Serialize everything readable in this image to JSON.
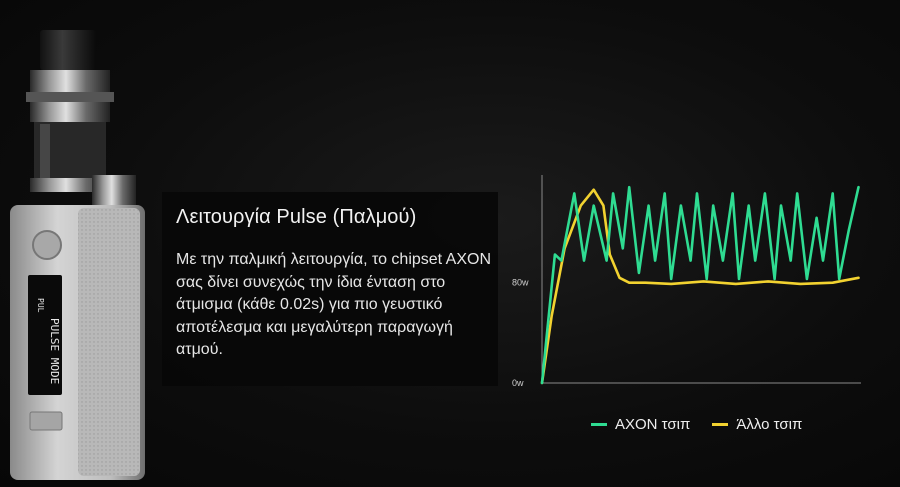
{
  "device": {
    "screen_text": "PULSE MODE",
    "screen_subtext": "PUL"
  },
  "feature": {
    "title": "Λειτουργία Pulse (Παλμού)",
    "description": "Με την παλμική λειτουργία, το chipset AXON σας δίνει συνεχώς την ίδια ένταση στο άτμισμα (κάθε 0.02s) για πιο γευστικό αποτέλεσμα και μεγαλύτερη παραγωγή ατμού."
  },
  "colors": {
    "axon": "#2fdc92",
    "other": "#f2d230",
    "axis": "#8a8a8a",
    "panel": "#080808"
  },
  "chart_data": {
    "type": "line",
    "title": "",
    "xlabel": "",
    "ylabel": "",
    "y_ticks": [
      "80w",
      "0w"
    ],
    "ylim": [
      0,
      1.7
    ],
    "xlim": [
      0,
      100
    ],
    "grid": false,
    "legend": "bottom",
    "series": [
      {
        "name": "AXON τσιπ",
        "color": "#2fdc92",
        "x": [
          0,
          4,
          6,
          10,
          13,
          16,
          20,
          22,
          25,
          27,
          30,
          33,
          35,
          38,
          40,
          43,
          46,
          48,
          51,
          53,
          56,
          59,
          61,
          64,
          66,
          69,
          72,
          74,
          77,
          79,
          82,
          85,
          87,
          90,
          92,
          95,
          98
        ],
        "y": [
          0,
          1.05,
          1.0,
          1.55,
          1.0,
          1.45,
          1.0,
          1.55,
          1.1,
          1.6,
          0.9,
          1.45,
          1.0,
          1.55,
          0.85,
          1.45,
          1.0,
          1.55,
          0.85,
          1.45,
          1.0,
          1.55,
          0.85,
          1.45,
          1.0,
          1.55,
          0.85,
          1.45,
          1.0,
          1.55,
          0.85,
          1.35,
          1.0,
          1.55,
          0.85,
          1.25,
          1.6
        ]
      },
      {
        "name": "Άλλο τσιπ",
        "color": "#f2d230",
        "x": [
          0,
          3,
          7,
          12,
          16,
          19,
          21,
          24,
          27,
          32,
          40,
          50,
          60,
          70,
          80,
          90,
          98
        ],
        "y": [
          0,
          0.55,
          1.1,
          1.45,
          1.58,
          1.45,
          1.05,
          0.86,
          0.82,
          0.82,
          0.81,
          0.83,
          0.81,
          0.83,
          0.81,
          0.82,
          0.86
        ]
      }
    ]
  }
}
